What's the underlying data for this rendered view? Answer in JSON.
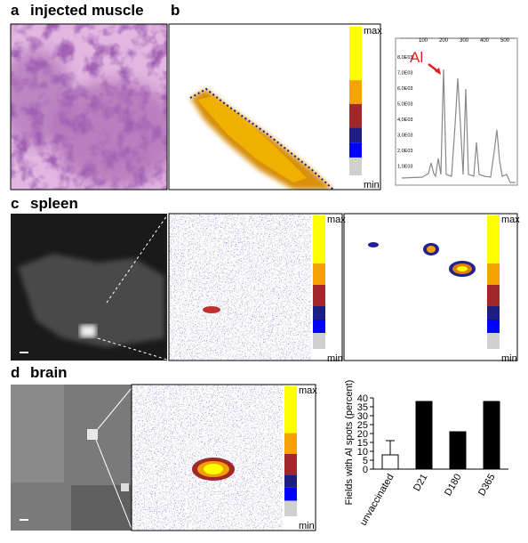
{
  "panels": {
    "a": {
      "letter": "a",
      "title": "injected muscle"
    },
    "b": {
      "letter": "b"
    },
    "c": {
      "letter": "c",
      "title": "spleen"
    },
    "d": {
      "letter": "d",
      "title": "brain"
    }
  },
  "colorbars": [
    {
      "max": "max",
      "min": "min"
    },
    {
      "max": "max",
      "min": "min"
    },
    {
      "max": "max",
      "min": "min"
    },
    {
      "max": "max",
      "min": "min"
    }
  ],
  "spectrum": {
    "xticks": [
      100,
      200,
      300,
      400,
      500
    ],
    "yticks": [
      "8,0E03",
      "7,0E03",
      "6,0E03",
      "5,0E03",
      "4,0E03",
      "3,0E03",
      "2,0E03",
      "1,0E03"
    ],
    "peak_label": "Al"
  },
  "chart_data": {
    "type": "bar",
    "ylabel": "Fields with Al spots  (percent)",
    "categories": [
      "unvaccinated",
      "D21",
      "D180",
      "D365"
    ],
    "values": [
      8,
      38,
      21,
      38
    ],
    "errors": [
      8,
      null,
      null,
      null
    ],
    "colors": [
      "#ffffff",
      "#000000",
      "#000000",
      "#000000"
    ],
    "ylim": [
      0,
      40
    ],
    "yticks": [
      0,
      5,
      10,
      15,
      20,
      25,
      30,
      35,
      40
    ]
  }
}
